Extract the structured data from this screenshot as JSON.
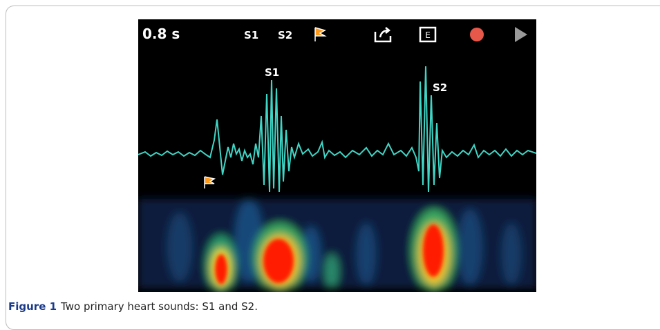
{
  "screenshot": {
    "duration": "0.8 s",
    "toolbar": [
      "S1",
      "S2"
    ],
    "annotations": [
      "S1",
      "S2"
    ]
  },
  "caption": {
    "label": "Figure 1",
    "text": "Two primary heart sounds: S1 and S2."
  }
}
